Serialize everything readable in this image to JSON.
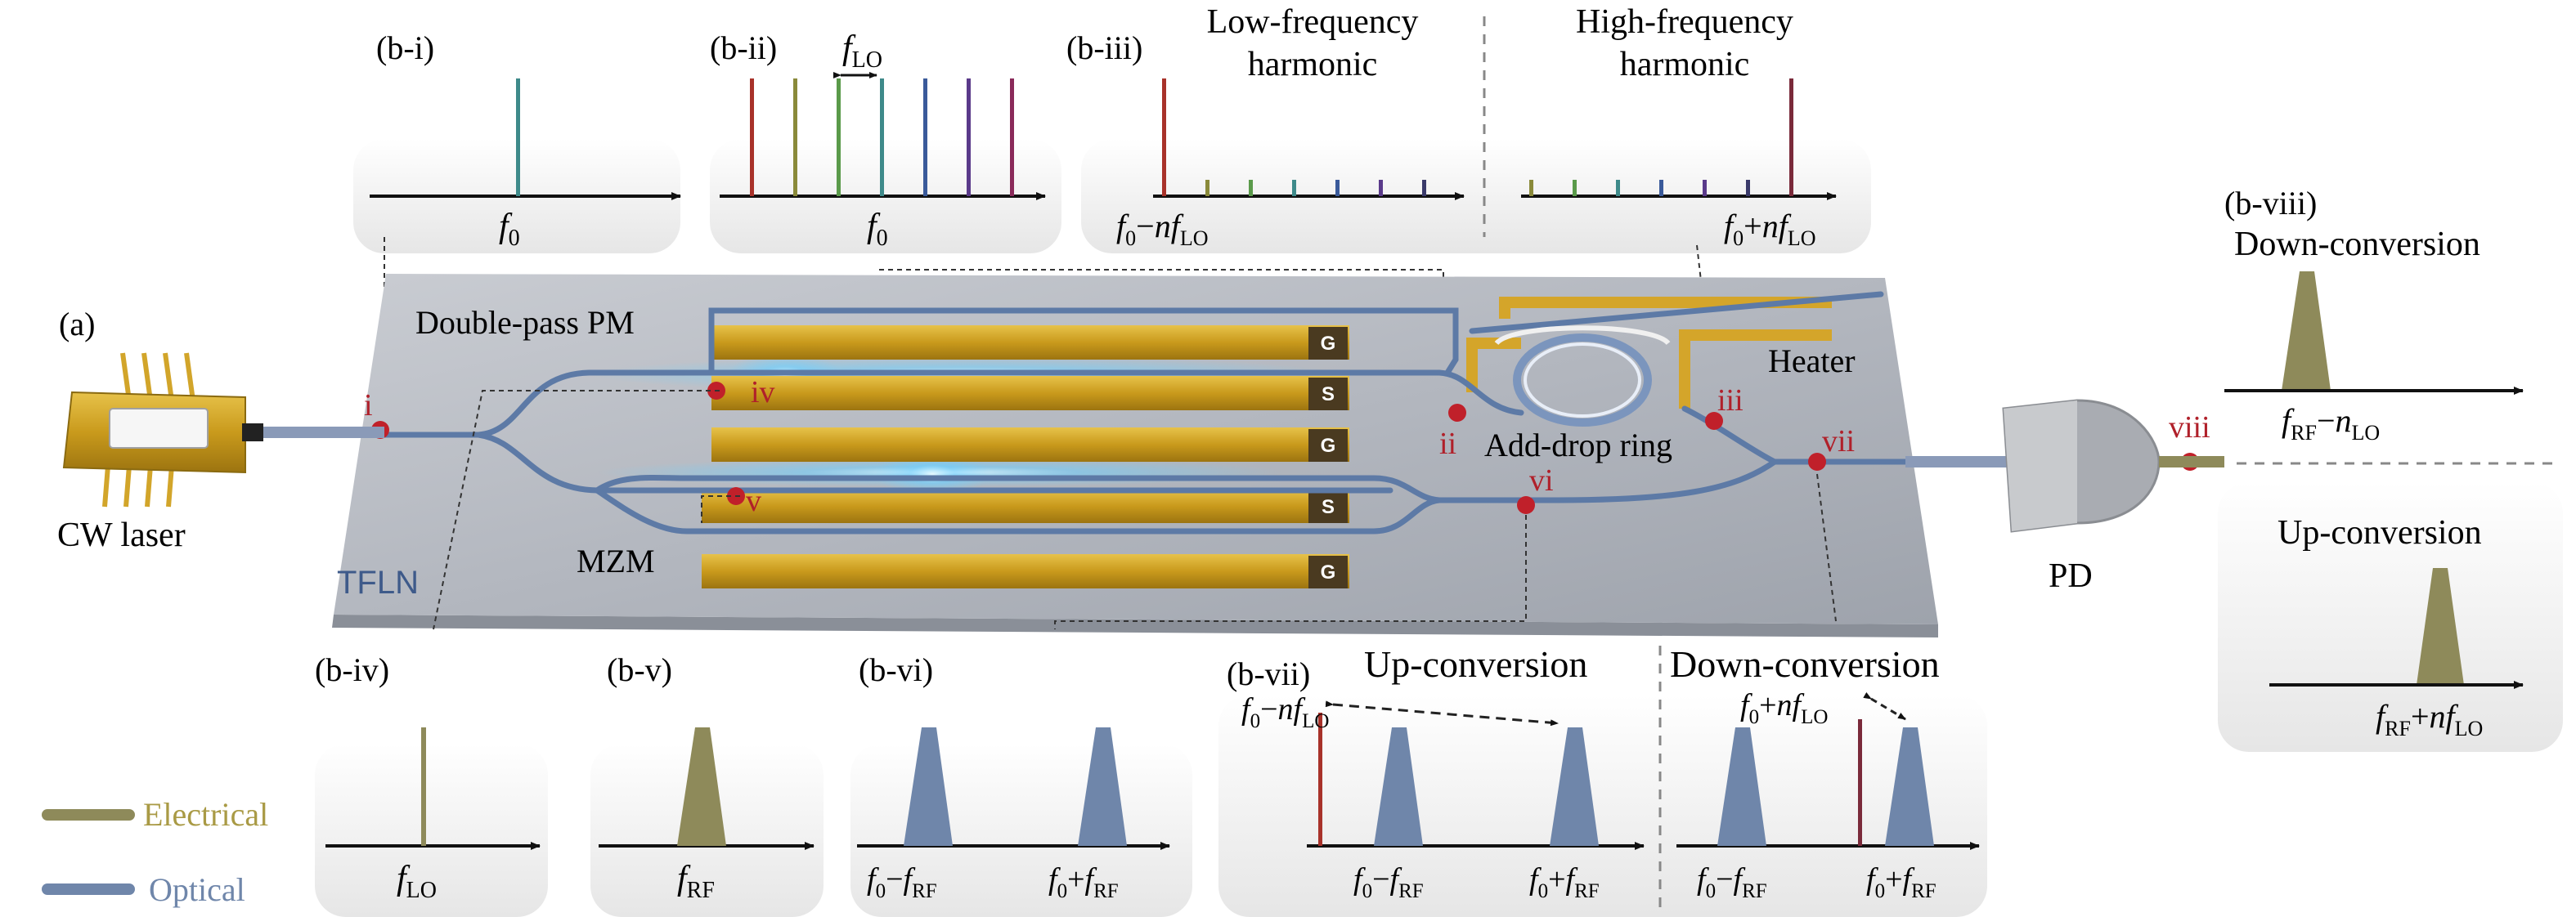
{
  "figure": {
    "panel_a_label": "(a)",
    "chip": {
      "platform_label": "TFLN",
      "double_pass_label": "Double-pass PM",
      "mzm_label": "MZM",
      "ring_label": "Add-drop ring",
      "heater_label": "Heater",
      "electrode_g": "G",
      "electrode_s": "S"
    },
    "laser_label": "CW laser",
    "pd_label": "PD",
    "points": {
      "i": "i",
      "ii": "ii",
      "iii": "iii",
      "iv": "iv",
      "v": "v",
      "vi": "vi",
      "vii": "vii",
      "viii": "viii"
    },
    "panels": {
      "b_i": {
        "label": "(b-i)",
        "axis": "f",
        "axis_sub": "0"
      },
      "b_ii": {
        "label": "(b-ii)",
        "axis": "f",
        "axis_sub": "0",
        "spacing": "f",
        "spacing_sub": "LO"
      },
      "b_iii": {
        "label": "(b-iii)",
        "low_title_1": "Low-frequency",
        "low_title_2": "harmonic",
        "high_title_1": "High-frequency",
        "high_title_2": "harmonic",
        "low_axis": "f0−nfLO",
        "high_axis": "f0+nfLO"
      },
      "b_iv": {
        "label": "(b-iv)",
        "axis": "f",
        "axis_sub": "LO"
      },
      "b_v": {
        "label": "(b-v)",
        "axis": "f",
        "axis_sub": "RF"
      },
      "b_vi": {
        "label": "(b-vi)",
        "axis_left": "f0−fRF",
        "axis_right": "f0+fRF"
      },
      "b_vii": {
        "label": "(b-vii)",
        "up_title": "Up-conversion",
        "down_title": "Down-conversion",
        "up_marker": "f0−nfLO",
        "down_marker": "f0+nfLO",
        "up_axis_left": "f0−fRF",
        "up_axis_right": "f0+fRF",
        "down_axis_left": "f0−fRF",
        "down_axis_right": "f0+fRF"
      },
      "b_viii": {
        "label": "(b-viii)",
        "down_title": "Down-conversion",
        "down_axis": "fRF−nLO",
        "up_title": "Up-conversion",
        "up_axis": "fRF+nfLO"
      }
    },
    "legend": {
      "electrical": "Electrical",
      "optical": "Optical"
    },
    "colors": {
      "optical": "#6f86aa",
      "electrical": "#8e8a5a",
      "gold": "#c9a227",
      "marker": "#c0202a",
      "chip": "#b8bcc4",
      "box": "#eeeeee",
      "line_colors": [
        "#a8322a",
        "#8a8a3a",
        "#5a9a4a",
        "#3e8a8a",
        "#3a5a9a",
        "#5a3a8a",
        "#8a2a5a"
      ]
    }
  }
}
